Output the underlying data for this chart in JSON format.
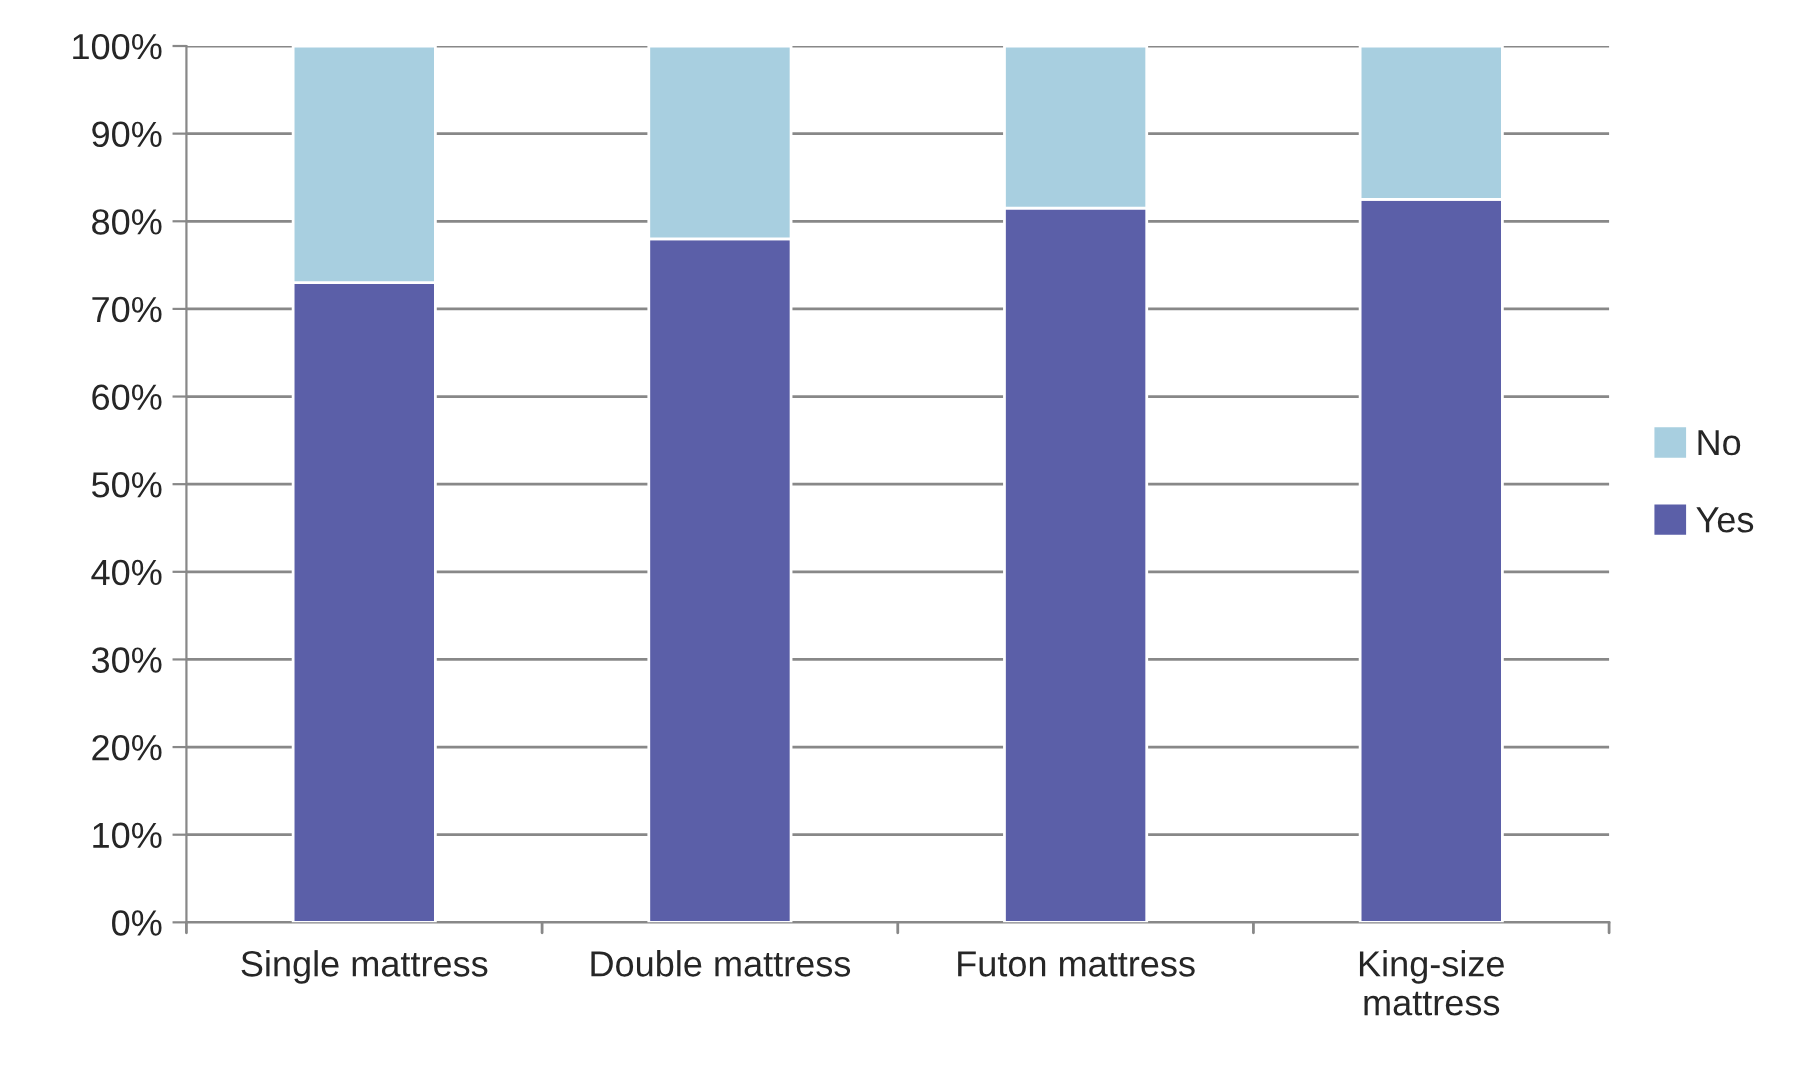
{
  "chart_data": {
    "type": "bar",
    "stacked": true,
    "categories": [
      "Single mattress",
      "Double mattress",
      "Futon mattress",
      "King-size\nmattress"
    ],
    "series": [
      {
        "name": "Yes",
        "color": "#5b5fa8",
        "values": [
          73,
          78,
          81.5,
          82.5
        ]
      },
      {
        "name": "No",
        "color": "#a8cfe0",
        "values": [
          27,
          22,
          18.5,
          17.5
        ]
      }
    ],
    "ylim": [
      0,
      100
    ],
    "yticks": [
      {
        "value": 0,
        "label": "0%"
      },
      {
        "value": 10,
        "label": "10%"
      },
      {
        "value": 20,
        "label": "20%"
      },
      {
        "value": 30,
        "label": "30%"
      },
      {
        "value": 40,
        "label": "40%"
      },
      {
        "value": 50,
        "label": "50%"
      },
      {
        "value": 60,
        "label": "60%"
      },
      {
        "value": 70,
        "label": "70%"
      },
      {
        "value": 80,
        "label": "80%"
      },
      {
        "value": 90,
        "label": "90%"
      },
      {
        "value": 100,
        "label": "100%"
      }
    ],
    "grid": "y",
    "legend": "right"
  }
}
